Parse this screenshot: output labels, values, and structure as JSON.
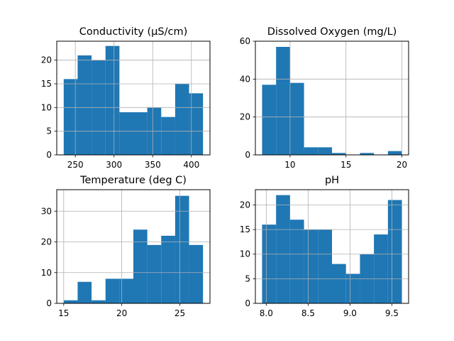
{
  "chart_data": [
    {
      "type": "bar",
      "title": "Conductivity (μS/cm)",
      "bin_edges": [
        235,
        253,
        271,
        289,
        307,
        325,
        343,
        361,
        379,
        397,
        415
      ],
      "values": [
        16,
        21,
        20,
        23,
        9,
        9,
        10,
        8,
        15,
        13
      ],
      "xlim": [
        226,
        424
      ],
      "ylim": [
        0,
        24
      ],
      "xticks": [
        250,
        300,
        350,
        400
      ],
      "yticks": [
        0,
        5,
        10,
        15,
        20
      ],
      "grid": true,
      "color": "#1f77b4"
    },
    {
      "type": "bar",
      "title": "Dissolved Oxygen (mg/L)",
      "bin_edges": [
        7.5,
        8.75,
        10.0,
        11.25,
        12.5,
        13.75,
        15.0,
        16.25,
        17.5,
        18.75,
        20.0
      ],
      "values": [
        37,
        57,
        38,
        4,
        4,
        1,
        0,
        1,
        0,
        2
      ],
      "xlim": [
        6.9,
        20.6
      ],
      "ylim": [
        0,
        60
      ],
      "xticks": [
        10,
        15,
        20
      ],
      "yticks": [
        0,
        20,
        40,
        60
      ],
      "grid": true,
      "color": "#1f77b4"
    },
    {
      "type": "bar",
      "title": "Temperature (deg C)",
      "bin_edges": [
        15.0,
        16.2,
        17.4,
        18.6,
        19.8,
        21.0,
        22.2,
        23.4,
        24.6,
        25.8,
        27.0
      ],
      "values": [
        1,
        7,
        1,
        8,
        8,
        24,
        19,
        22,
        35,
        19
      ],
      "xlim": [
        14.4,
        27.6
      ],
      "ylim": [
        0,
        37
      ],
      "xticks": [
        15,
        20,
        25
      ],
      "yticks": [
        0,
        10,
        20,
        30
      ],
      "grid": true,
      "color": "#1f77b4"
    },
    {
      "type": "bar",
      "title": "pH",
      "bin_edges": [
        7.95,
        8.117,
        8.284,
        8.451,
        8.618,
        8.785,
        8.952,
        9.119,
        9.286,
        9.453,
        9.62
      ],
      "values": [
        16,
        22,
        17,
        15,
        15,
        8,
        6,
        10,
        14,
        21
      ],
      "xlim": [
        7.87,
        9.7
      ],
      "ylim": [
        0,
        23.1
      ],
      "xticks": [
        8.0,
        8.5,
        9.0,
        9.5
      ],
      "xtick_labels": [
        "8.0",
        "8.5",
        "9.0",
        "9.5"
      ],
      "yticks": [
        0,
        5,
        10,
        15,
        20
      ],
      "grid": true,
      "color": "#1f77b4"
    }
  ]
}
